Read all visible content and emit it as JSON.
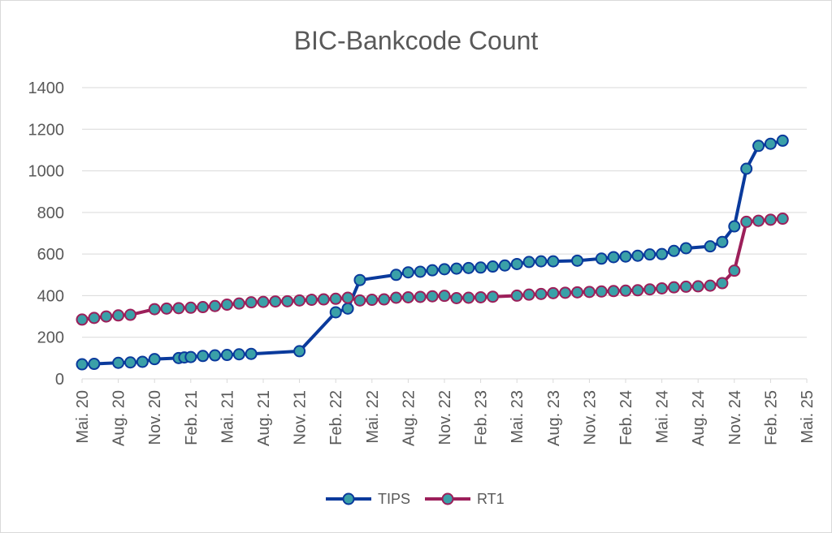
{
  "chart_data": {
    "type": "line",
    "title": "BIC-Bankcode Count",
    "xlabel": "",
    "ylabel": "",
    "ylim": [
      0,
      1400
    ],
    "yticks": [
      0,
      200,
      400,
      600,
      800,
      1000,
      1200,
      1400
    ],
    "grid": true,
    "legend_position": "bottom",
    "x_range": [
      "2020-05",
      "2025-05"
    ],
    "x_ticks": [
      "Mai. 20",
      "Aug. 20",
      "Nov. 20",
      "Feb. 21",
      "Mai. 21",
      "Aug. 21",
      "Nov. 21",
      "Feb. 22",
      "Mai. 22",
      "Aug. 22",
      "Nov. 22",
      "Feb. 23",
      "Mai. 23",
      "Aug. 23",
      "Nov. 23",
      "Feb. 24",
      "Mai. 24",
      "Aug. 24",
      "Nov. 24",
      "Feb. 25",
      "Mai. 25"
    ],
    "series": [
      {
        "name": "TIPS",
        "color": "#0a3a9c",
        "marker_color": "#3aa0a8",
        "x": [
          "2020-05",
          "2020-06",
          "2020-08",
          "2020-09",
          "2020-10",
          "2020-11",
          "2021-01",
          "2021-01-15",
          "2021-02",
          "2021-03",
          "2021-04",
          "2021-05",
          "2021-06",
          "2021-07",
          "2021-11",
          "2022-02",
          "2022-03",
          "2022-04",
          "2022-07",
          "2022-08",
          "2022-09",
          "2022-10",
          "2022-11",
          "2022-12",
          "2023-01",
          "2023-02",
          "2023-03",
          "2023-04",
          "2023-05",
          "2023-06",
          "2023-07",
          "2023-08",
          "2023-10",
          "2023-12",
          "2024-01",
          "2024-02",
          "2024-03",
          "2024-04",
          "2024-05",
          "2024-06",
          "2024-07",
          "2024-09",
          "2024-10",
          "2024-11",
          "2024-12",
          "2025-01",
          "2025-02",
          "2025-03"
        ],
        "y": [
          70,
          72,
          77,
          79,
          82,
          95,
          100,
          103,
          105,
          110,
          113,
          115,
          118,
          120,
          133,
          320,
          338,
          475,
          500,
          512,
          515,
          522,
          527,
          530,
          533,
          535,
          540,
          545,
          552,
          562,
          565,
          565,
          568,
          578,
          585,
          588,
          592,
          598,
          600,
          615,
          628,
          637,
          658,
          733,
          1010,
          1120,
          1130,
          1145
        ]
      },
      {
        "name": "RT1",
        "color": "#9c1f5a",
        "marker_color": "#3aa0a8",
        "x": [
          "2020-05",
          "2020-06",
          "2020-07",
          "2020-08",
          "2020-09",
          "2020-11",
          "2020-12",
          "2021-01",
          "2021-02",
          "2021-03",
          "2021-04",
          "2021-05",
          "2021-06",
          "2021-07",
          "2021-08",
          "2021-09",
          "2021-10",
          "2021-11",
          "2021-12",
          "2022-01",
          "2022-02",
          "2022-03",
          "2022-04",
          "2022-05",
          "2022-06",
          "2022-07",
          "2022-08",
          "2022-09",
          "2022-10",
          "2022-11",
          "2022-12",
          "2023-01",
          "2023-02",
          "2023-03",
          "2023-05",
          "2023-06",
          "2023-07",
          "2023-08",
          "2023-09",
          "2023-10",
          "2023-11",
          "2023-12",
          "2024-01",
          "2024-02",
          "2024-03",
          "2024-04",
          "2024-05",
          "2024-06",
          "2024-07",
          "2024-08",
          "2024-09",
          "2024-10",
          "2024-11",
          "2024-12",
          "2025-01",
          "2025-02",
          "2025-03"
        ],
        "y": [
          285,
          293,
          300,
          305,
          308,
          335,
          338,
          340,
          342,
          345,
          350,
          357,
          362,
          368,
          370,
          372,
          373,
          377,
          380,
          382,
          385,
          390,
          377,
          380,
          382,
          390,
          392,
          394,
          397,
          399,
          388,
          390,
          392,
          395,
          400,
          405,
          408,
          412,
          414,
          416,
          418,
          420,
          422,
          424,
          426,
          430,
          435,
          440,
          443,
          445,
          448,
          460,
          520,
          755,
          760,
          765,
          770
        ]
      }
    ]
  }
}
